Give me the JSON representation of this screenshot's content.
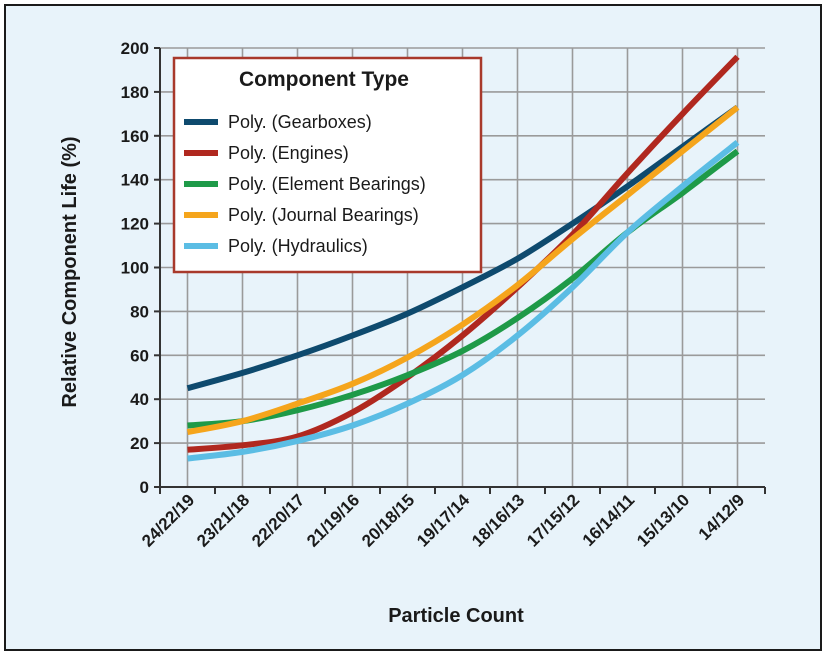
{
  "chart_data": {
    "type": "line",
    "xlabel": "Particle Count",
    "ylabel": "Relative Component  Life (%)",
    "ylim": [
      0,
      200
    ],
    "yticks": [
      0,
      20,
      40,
      60,
      80,
      100,
      120,
      140,
      160,
      180,
      200
    ],
    "categories": [
      "24/22/19",
      "23/21/18",
      "22/20/17",
      "21/19/16",
      "20/18/15",
      "19/17/14",
      "18/16/13",
      "17/15/12",
      "16/14/11",
      "15/13/10",
      "14/12/9"
    ],
    "grid": true,
    "legend": {
      "title": "Component Type",
      "placement": "top-left"
    },
    "series": [
      {
        "name": "Poly. (Gearboxes)",
        "color": "#0e4a6e",
        "values": [
          45,
          52,
          60,
          69,
          79,
          91,
          104,
          120,
          137,
          155,
          173
        ]
      },
      {
        "name": "Poly. (Engines)",
        "color": "#b0281f",
        "values": [
          17,
          19,
          23,
          34,
          50,
          69,
          91,
          115,
          143,
          170,
          196
        ]
      },
      {
        "name": "Poly. (Element Bearings)",
        "color": "#1e9a48",
        "values": [
          28,
          30,
          35,
          42,
          51,
          62,
          77,
          95,
          116,
          134,
          153
        ]
      },
      {
        "name": "Poly. (Journal Bearings)",
        "color": "#f5a51c",
        "values": [
          25,
          30,
          38,
          47,
          59,
          74,
          92,
          113,
          133,
          153,
          173
        ]
      },
      {
        "name": "Poly. (Hydraulics)",
        "color": "#5bbde4",
        "values": [
          13,
          16,
          21,
          28,
          38,
          51,
          69,
          91,
          116,
          137,
          157
        ]
      }
    ]
  }
}
